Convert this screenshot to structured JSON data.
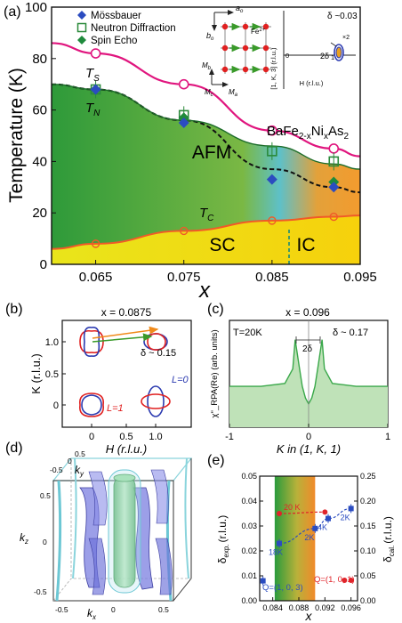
{
  "chart_data": [
    {
      "panel": "(a)",
      "type": "scatter",
      "title": "",
      "compound": "BaFe2-xNixAs2",
      "xlabel": "x",
      "ylabel": "Temperature (K)",
      "xlim": [
        0.06,
        0.095
      ],
      "ylim": [
        0,
        100
      ],
      "xticks": [
        "0.065",
        "0.075",
        "0.085",
        "0.095"
      ],
      "yticks": [
        "0",
        "20",
        "40",
        "60",
        "80",
        "100"
      ],
      "legend": [
        "Mössbauer",
        "Neutron Diffraction",
        "Spin Echo"
      ],
      "region_labels": [
        "AFM",
        "SC",
        "IC"
      ],
      "line_labels": {
        "ts": "T",
        "ts_sub": "S",
        "tn": "T",
        "tn_sub": "N",
        "tc": "T",
        "tc_sub": "C"
      },
      "series": [
        {
          "name": "T_S",
          "color": "#e0157e",
          "x": [
            0.06,
            0.065,
            0.075,
            0.085,
            0.092,
            0.095
          ],
          "y": [
            86,
            82,
            70,
            52,
            45,
            42
          ]
        },
        {
          "name": "T_N",
          "color": "#111111",
          "x": [
            0.06,
            0.065,
            0.075,
            0.085,
            0.092,
            0.095
          ],
          "y": [
            70,
            68,
            56,
            37,
            30,
            28
          ]
        },
        {
          "name": "T_C",
          "color": "#f05a28",
          "x": [
            0.06,
            0.065,
            0.075,
            0.085,
            0.092,
            0.095
          ],
          "y": [
            6,
            8,
            13,
            17,
            18.5,
            19
          ]
        },
        {
          "name": "T_S open circles",
          "x": [
            0.065,
            0.075,
            0.085,
            0.092
          ],
          "y": [
            82,
            70,
            52,
            45
          ]
        },
        {
          "name": "Mössbauer",
          "x": [
            0.065,
            0.075,
            0.085,
            0.092
          ],
          "y": [
            68,
            55,
            33,
            30
          ]
        },
        {
          "name": "Neutron Diffraction",
          "x": [
            0.065,
            0.075,
            0.085,
            0.092
          ],
          "y": [
            68,
            58,
            44,
            40
          ]
        },
        {
          "name": "Spin Echo",
          "x": [
            0.065,
            0.075,
            0.092
          ],
          "y": [
            68,
            57,
            32
          ]
        },
        {
          "name": "T_C open circles",
          "x": [
            0.065,
            0.075,
            0.085,
            0.092
          ],
          "y": [
            8,
            13,
            17,
            18.5
          ]
        }
      ],
      "inset": {
        "lattice_labels": [
          "a",
          "o",
          "b",
          "o",
          "Fe",
          "2+",
          "M",
          "b",
          "M",
          "c",
          "M",
          "a"
        ],
        "axis_y": "[1, K, 3] (r.l.u.)",
        "axis_x": "H (r.l.u.)",
        "delta": "δ ~0.03",
        "two_delta": "2δ",
        "zoom": "×2",
        "tick_zero": "0",
        "tick_one": "1"
      }
    },
    {
      "panel": "(b)",
      "type": "other",
      "title": "x = 0.0875",
      "xlabel": "H (r.l.u.)",
      "ylabel": "K (r.l.u.)",
      "xticks": [
        "0",
        "0.5",
        "1.0"
      ],
      "yticks": [
        "0",
        "0.5",
        "1.0"
      ],
      "annotations": [
        "δ ~ 0.15",
        "L=0",
        "L=1"
      ]
    },
    {
      "panel": "(c)",
      "type": "line",
      "title": "x = 0.096",
      "xlabel": "K in (1, K, 1)",
      "ylabel": "χ''_RPA(Re) (arb. units)",
      "xlim": [
        -1,
        1
      ],
      "xticks": [
        "-1",
        "0",
        "1"
      ],
      "annotations": [
        "T=20K",
        "2δ",
        "δ ~ 0.17"
      ],
      "series": [
        {
          "name": "",
          "color": "#3aa84a",
          "x": [
            -1.0,
            -0.6,
            -0.3,
            -0.2,
            -0.17,
            -0.12,
            -0.08,
            -0.04,
            0.0,
            0.04,
            0.08,
            0.12,
            0.17,
            0.2,
            0.3,
            0.6,
            1.0
          ],
          "y": [
            1.4,
            1.4,
            1.5,
            2.0,
            3.0,
            2.1,
            1.4,
            1.0,
            0.8,
            1.0,
            1.4,
            2.1,
            3.0,
            2.0,
            1.5,
            1.4,
            1.4
          ]
        }
      ]
    },
    {
      "panel": "(d)",
      "type": "other",
      "title": "",
      "axis_labels": [
        "k",
        "y",
        "k",
        "z",
        "k",
        "x"
      ],
      "ticks": [
        "-0.5",
        "0",
        "0.5",
        "0.5",
        "0",
        "-0.5",
        "-0.5",
        "0",
        "0.5"
      ]
    },
    {
      "panel": "(e)",
      "type": "scatter",
      "title": "",
      "xlabel": "x",
      "ylabel_left": "δ",
      "ylabel_left_sub": "exp.",
      "ylabel_left_unit": "(r.l.u.)",
      "ylabel_right": "δ",
      "ylabel_right_sub": "cal.",
      "ylabel_right_unit": "(r.l.u.)",
      "xlim": [
        0.082,
        0.097
      ],
      "ylim_left": [
        0,
        0.05
      ],
      "ylim_right": [
        0,
        0.25
      ],
      "xticks": [
        "0.084",
        "0.088",
        "0.092",
        "0.096"
      ],
      "yticks_left": [
        "0.00",
        "0.01",
        "0.02",
        "0.03",
        "0.04",
        "0.05"
      ],
      "yticks_right": [
        "0.00",
        "0.05",
        "0.10",
        "0.15",
        "0.20",
        "0.25"
      ],
      "series": [
        {
          "name": "",
          "color": "#2b4cc0",
          "x": [
            0.0825,
            0.085,
            0.0905,
            0.0925,
            0.096
          ],
          "y": [
            0.008,
            0.023,
            0.029,
            0.033,
            0.037
          ],
          "labels": [
            "",
            "18K",
            "2K",
            "4K",
            "2K"
          ]
        },
        {
          "name": "",
          "color": "#e0242a",
          "axis": "right",
          "x": [
            0.085,
            0.092,
            0.095,
            0.096
          ],
          "y": [
            0.175,
            0.178,
            0.041,
            0.041
          ],
          "labels": [
            "20 K",
            "",
            "",
            ""
          ]
        }
      ],
      "annotations": [
        "Q=(1, 0, 3)",
        "Q=(1, 0, 1)"
      ]
    }
  ]
}
